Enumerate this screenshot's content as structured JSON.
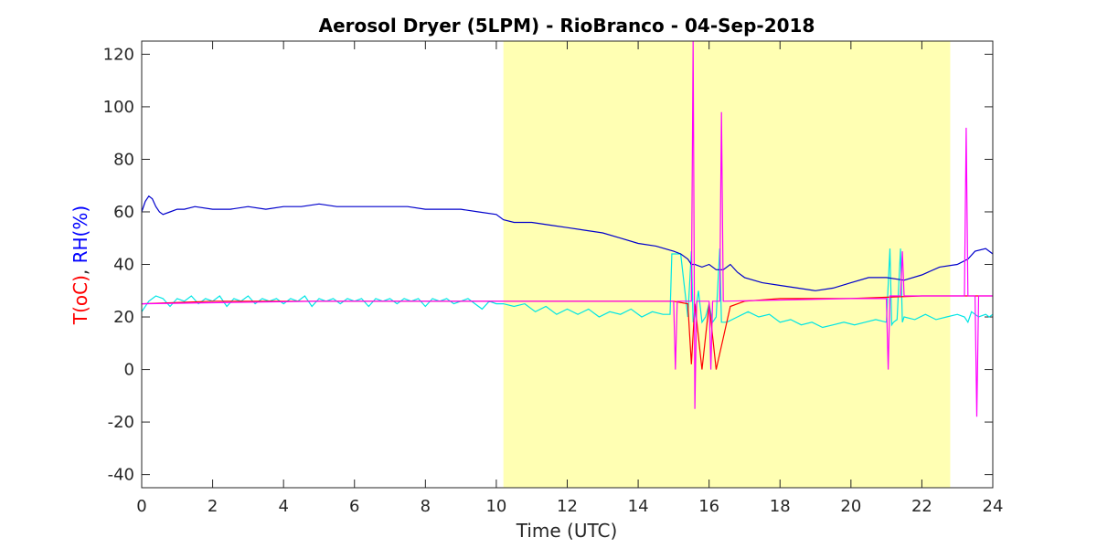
{
  "chart_data": {
    "type": "line",
    "title": "Aerosol Dryer (5LPM) - RioBranco - 04-Sep-2018",
    "xlabel": "Time (UTC)",
    "ylabel_parts": [
      {
        "text": "T(oC)",
        "color": "#ff0000"
      },
      {
        "text": ", ",
        "color": "#262626"
      },
      {
        "text": "RH(%)",
        "color": "#0000ff"
      }
    ],
    "xlim": [
      0,
      24
    ],
    "ylim": [
      -45,
      125
    ],
    "xticks": [
      0,
      2,
      4,
      6,
      8,
      10,
      12,
      14,
      16,
      18,
      20,
      22,
      24
    ],
    "yticks": [
      -40,
      -20,
      0,
      20,
      40,
      60,
      80,
      100,
      120
    ],
    "shaded_region": {
      "x_start": 10.2,
      "x_end": 22.8,
      "color": "#ffffb3"
    },
    "series": [
      {
        "color": "#00e5e5",
        "x": [
          0,
          0.2,
          0.4,
          0.6,
          0.8,
          1.0,
          1.2,
          1.4,
          1.6,
          1.8,
          2.0,
          2.2,
          2.4,
          2.6,
          2.8,
          3.0,
          3.2,
          3.4,
          3.6,
          3.8,
          4.0,
          4.2,
          4.4,
          4.6,
          4.8,
          5.0,
          5.2,
          5.4,
          5.6,
          5.8,
          6.0,
          6.2,
          6.4,
          6.6,
          6.8,
          7.0,
          7.2,
          7.4,
          7.6,
          7.8,
          8.0,
          8.2,
          8.4,
          8.6,
          8.8,
          9.0,
          9.2,
          9.4,
          9.6,
          9.8,
          10.0,
          10.2,
          10.5,
          10.8,
          11.1,
          11.4,
          11.7,
          12.0,
          12.3,
          12.6,
          12.9,
          13.2,
          13.5,
          13.8,
          14.1,
          14.4,
          14.7,
          14.9,
          14.95,
          15.0,
          15.2,
          15.4,
          15.5,
          15.55,
          15.6,
          15.7,
          15.8,
          15.9,
          16.0,
          16.1,
          16.2,
          16.3,
          16.35,
          16.5,
          16.8,
          17.1,
          17.4,
          17.7,
          18.0,
          18.3,
          18.6,
          18.9,
          19.2,
          19.5,
          19.8,
          20.1,
          20.4,
          20.7,
          21.0,
          21.1,
          21.15,
          21.2,
          21.3,
          21.4,
          21.45,
          21.5,
          21.8,
          22.1,
          22.4,
          22.7,
          23.0,
          23.2,
          23.3,
          23.35,
          23.4,
          23.6,
          23.8,
          23.9,
          24.0
        ],
        "y": [
          22,
          26,
          28,
          27,
          24,
          27,
          26,
          28,
          25,
          27,
          26,
          28,
          24,
          27,
          26,
          28,
          25,
          27,
          26,
          27,
          25,
          27,
          26,
          28,
          24,
          27,
          26,
          27,
          25,
          27,
          26,
          27,
          24,
          27,
          26,
          27,
          25,
          27,
          26,
          27,
          24,
          27,
          26,
          27,
          25,
          26,
          27,
          25,
          23,
          26,
          25,
          25,
          24,
          25,
          22,
          24,
          21,
          23,
          21,
          23,
          20,
          22,
          21,
          23,
          20,
          22,
          21,
          21,
          44,
          44,
          44,
          20,
          45,
          18,
          20,
          30,
          18,
          20,
          25,
          18,
          20,
          46,
          18,
          18,
          20,
          22,
          20,
          21,
          18,
          19,
          17,
          18,
          16,
          17,
          18,
          17,
          18,
          19,
          18,
          46,
          17,
          18,
          19,
          46,
          18,
          20,
          19,
          21,
          19,
          20,
          21,
          20,
          18,
          20,
          22,
          20,
          21,
          20,
          21
        ]
      },
      {
        "color": "#0000cc",
        "x": [
          0,
          0.1,
          0.2,
          0.3,
          0.4,
          0.5,
          0.6,
          0.8,
          1.0,
          1.2,
          1.5,
          2.0,
          2.5,
          3.0,
          3.5,
          4.0,
          4.5,
          5.0,
          5.5,
          6.0,
          6.5,
          7.0,
          7.5,
          8.0,
          8.5,
          9.0,
          9.5,
          10.0,
          10.2,
          10.5,
          11.0,
          11.5,
          12.0,
          12.5,
          13.0,
          13.5,
          14.0,
          14.5,
          15.0,
          15.2,
          15.4,
          15.5,
          15.6,
          15.8,
          16.0,
          16.2,
          16.4,
          16.6,
          16.8,
          17.0,
          17.5,
          18.0,
          18.5,
          19.0,
          19.5,
          20.0,
          20.5,
          21.0,
          21.5,
          22.0,
          22.5,
          23.0,
          23.3,
          23.5,
          23.8,
          24.0
        ],
        "y": [
          60,
          64,
          66,
          65,
          62,
          60,
          59,
          60,
          61,
          61,
          62,
          61,
          61,
          62,
          61,
          62,
          62,
          63,
          62,
          62,
          62,
          62,
          62,
          61,
          61,
          61,
          60,
          59,
          57,
          56,
          56,
          55,
          54,
          53,
          52,
          50,
          48,
          47,
          45,
          44,
          42,
          40,
          40,
          39,
          40,
          38,
          38,
          40,
          37,
          35,
          33,
          32,
          31,
          30,
          31,
          33,
          35,
          35,
          34,
          36,
          39,
          40,
          42,
          45,
          46,
          44
        ]
      },
      {
        "color": "#ff0000",
        "x": [
          0,
          2,
          4,
          6,
          8,
          10,
          12,
          14,
          15.0,
          15.4,
          15.5,
          15.6,
          15.8,
          16.0,
          16.2,
          16.6,
          17.0,
          18.0,
          20.0,
          22.0,
          24.0
        ],
        "y": [
          25,
          26,
          26,
          26,
          26,
          26,
          26,
          26,
          26,
          25,
          2,
          25,
          0,
          25,
          0,
          24,
          26,
          27,
          27,
          28,
          28
        ]
      },
      {
        "color": "#ff00ff",
        "x": [
          0,
          5,
          10,
          14.9,
          15.0,
          15.05,
          15.1,
          15.5,
          15.55,
          15.6,
          15.65,
          16.0,
          16.05,
          16.1,
          16.3,
          16.35,
          16.4,
          20.0,
          21.0,
          21.05,
          21.1,
          21.4,
          21.45,
          21.5,
          23.0,
          23.2,
          23.25,
          23.3,
          23.5,
          23.55,
          23.6,
          24.0
        ],
        "y": [
          25,
          26,
          26,
          26,
          26,
          0,
          26,
          26,
          125,
          -15,
          26,
          26,
          0,
          26,
          26,
          98,
          26,
          27,
          27,
          0,
          28,
          28,
          45,
          28,
          28,
          28,
          92,
          28,
          28,
          -18,
          28,
          28
        ]
      }
    ]
  }
}
